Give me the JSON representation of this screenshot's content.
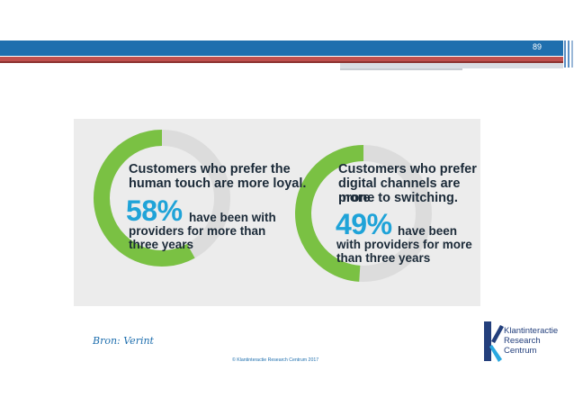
{
  "header": {
    "slide_number": "89"
  },
  "panel": {
    "left": {
      "heading_line1": "Customers who prefer the",
      "heading_line2": "human touch are more loyal.",
      "percent": "58%",
      "line1_rest": "have been with",
      "line2": "providers for more than",
      "line3": "three years",
      "value": 58
    },
    "right": {
      "heading_line1": "Customers who prefer",
      "heading_line2": "digital channels are more",
      "heading_line3": "prone to switching.",
      "percent": "49%",
      "line1_rest": "have been",
      "line2": "with providers for more",
      "line3": "than three years",
      "value": 49
    },
    "colors": {
      "ring_fill": "#7ac143",
      "ring_track": "#dcdcdc",
      "percent": "#1fa3d8",
      "background": "#ececec"
    }
  },
  "footer": {
    "source": "Bron: Verint",
    "copyright": "© Klantinteractie Research Centrum 2017"
  },
  "logo": {
    "line1": "Klantinteractie",
    "line2": "Research",
    "line3": "Centrum"
  }
}
